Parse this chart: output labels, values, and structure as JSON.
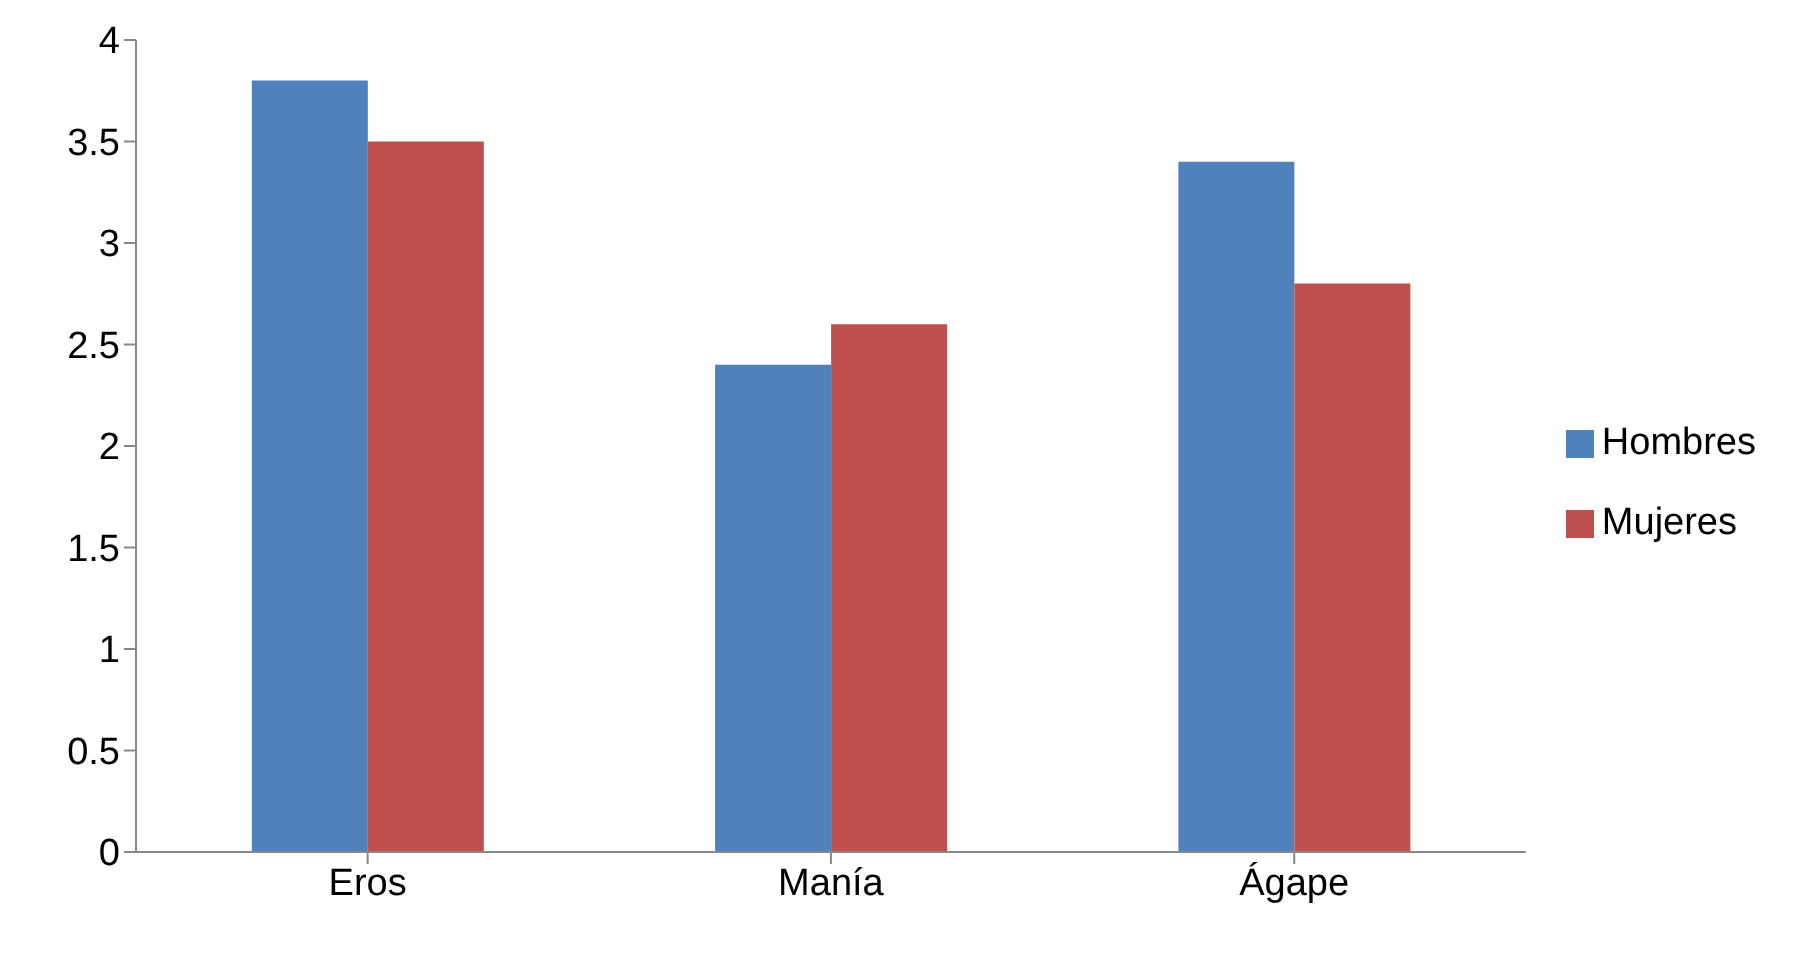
{
  "chart_data": {
    "type": "bar",
    "categories": [
      "Eros",
      "Manía",
      "Ágape"
    ],
    "series": [
      {
        "name": "Hombres",
        "color": "#4f81bd",
        "values": [
          3.8,
          2.4,
          3.4
        ]
      },
      {
        "name": "Mujeres",
        "color": "#c0504d",
        "values": [
          3.5,
          2.6,
          2.8
        ]
      }
    ],
    "ylim": [
      0,
      4
    ],
    "yticks": [
      0,
      0.5,
      1,
      1.5,
      2,
      2.5,
      3,
      3.5,
      4
    ],
    "grid": false,
    "legend": "right"
  }
}
